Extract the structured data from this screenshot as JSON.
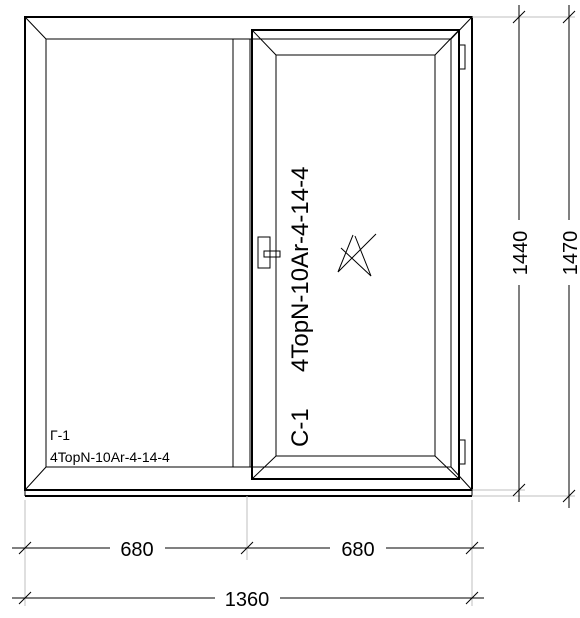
{
  "fixed_pane": {
    "code": "Г-1",
    "glass": "4TopN-10Ar-4-14-4"
  },
  "sash": {
    "code": "С-1",
    "glass": "4TopN-10Ar-4-14-4"
  },
  "dimensions": {
    "left_width": "680",
    "right_width": "680",
    "total_width": "1360",
    "inner_height": "1440",
    "total_height": "1470"
  }
}
